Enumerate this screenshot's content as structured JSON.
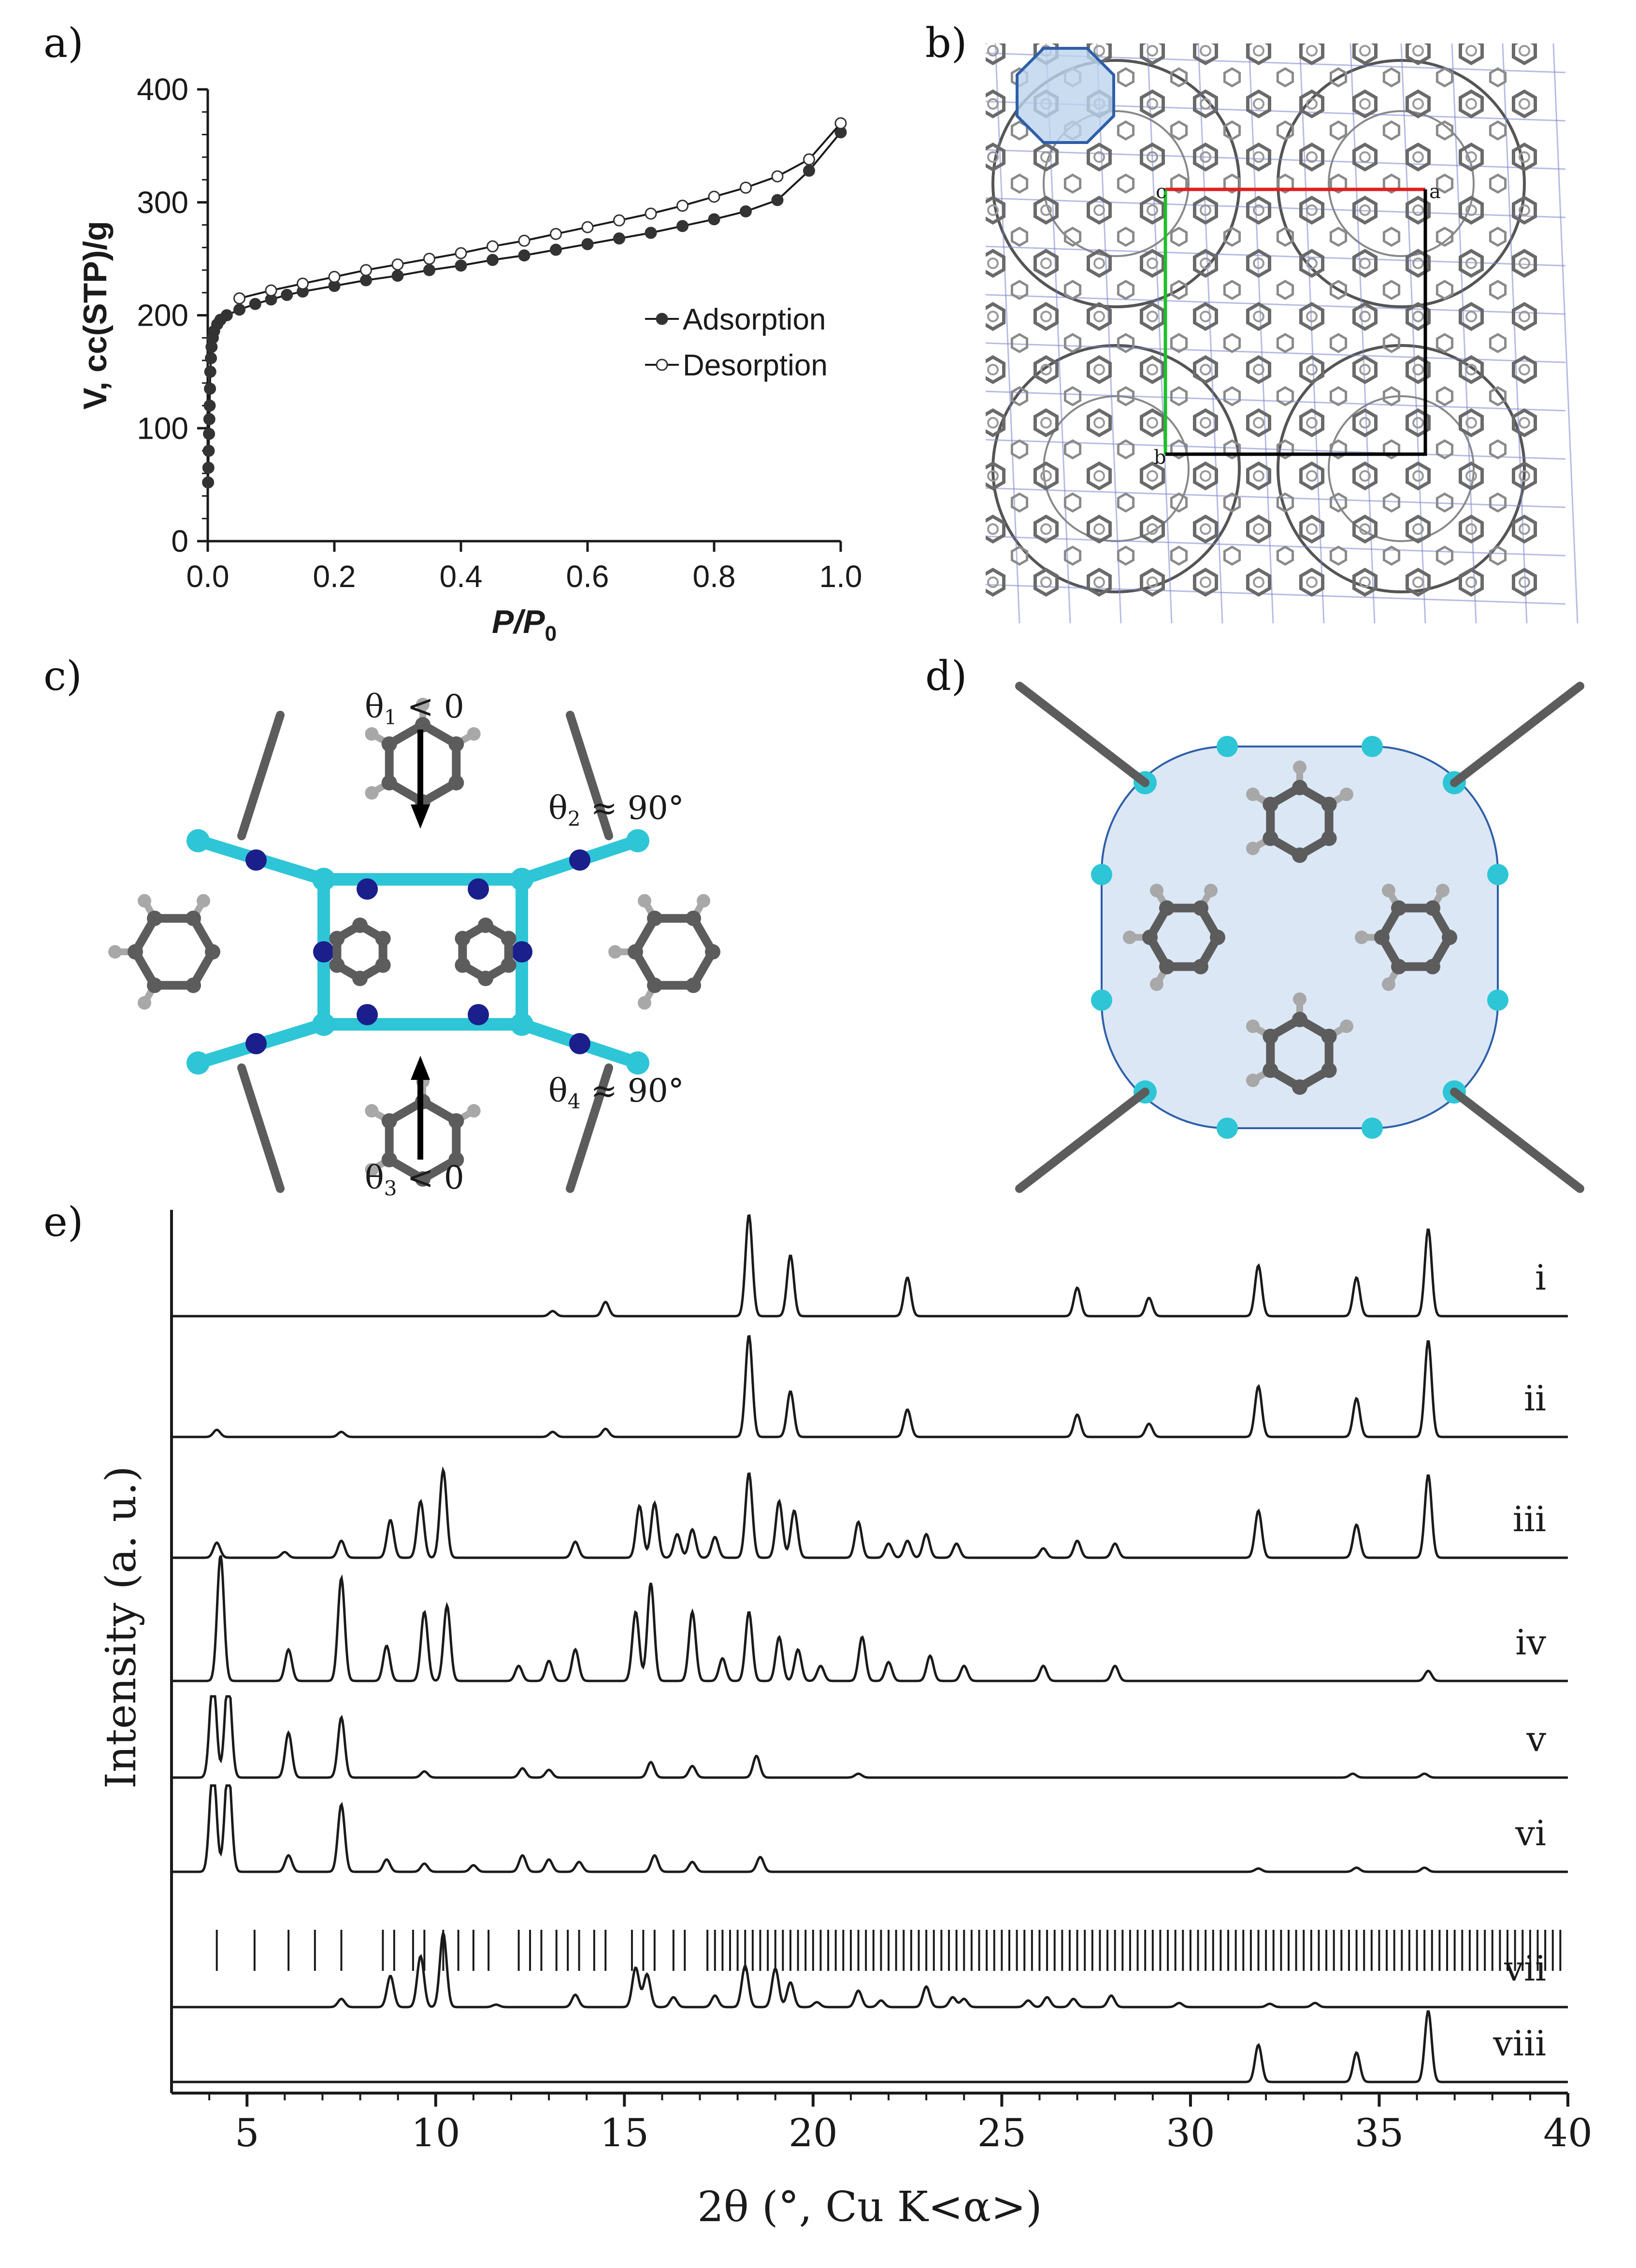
{
  "panels": {
    "a": "a)",
    "b": "b)",
    "c": "c)",
    "d": "d)",
    "e": "e)"
  },
  "colors": {
    "ink": "#1a1a1a",
    "pore_fill": "#bcd3ec",
    "pore_edge": "#2e5fa8",
    "zn": "#2ec6d6",
    "n": "#1a1f8c",
    "c": "#5c5c5c",
    "h": "#a8a8a8",
    "axis_a": "#e01f1f",
    "axis_b": "#1fbf2a",
    "cell": "#000000",
    "framework_line": "#7b84cc"
  },
  "chart_data": [
    {
      "type": "line",
      "panel": "a)",
      "xlabel": "P/P",
      "xlabel_sub": "0",
      "ylabel": "V, cc(STP)/g",
      "xlim": [
        0.0,
        1.0
      ],
      "ylim": [
        0,
        400
      ],
      "xticks": [
        "0.0",
        "0.2",
        "0.4",
        "0.6",
        "0.8",
        "1.0"
      ],
      "yticks": [
        "0",
        "100",
        "200",
        "300",
        "400"
      ],
      "legend_position": "right",
      "series": [
        {
          "name": "Adsorption",
          "marker": "filled",
          "x": [
            0.0005,
            0.001,
            0.0015,
            0.002,
            0.0025,
            0.003,
            0.0035,
            0.004,
            0.005,
            0.006,
            0.008,
            0.01,
            0.015,
            0.02,
            0.03,
            0.05,
            0.075,
            0.1,
            0.125,
            0.15,
            0.2,
            0.25,
            0.3,
            0.35,
            0.4,
            0.45,
            0.5,
            0.55,
            0.6,
            0.65,
            0.7,
            0.75,
            0.8,
            0.85,
            0.9,
            0.95,
            1.0
          ],
          "y": [
            52,
            65,
            80,
            95,
            108,
            120,
            135,
            150,
            162,
            172,
            180,
            186,
            192,
            196,
            200,
            205,
            210,
            214,
            218,
            221,
            226,
            231,
            235,
            240,
            244,
            249,
            253,
            258,
            263,
            268,
            273,
            279,
            285,
            292,
            302,
            328,
            362
          ]
        },
        {
          "name": "Desorption",
          "marker": "open",
          "x": [
            0.05,
            0.1,
            0.15,
            0.2,
            0.25,
            0.3,
            0.35,
            0.4,
            0.45,
            0.5,
            0.55,
            0.6,
            0.65,
            0.7,
            0.75,
            0.8,
            0.85,
            0.9,
            0.95,
            1.0
          ],
          "y": [
            215,
            222,
            228,
            234,
            240,
            245,
            250,
            255,
            261,
            266,
            272,
            278,
            284,
            290,
            297,
            305,
            313,
            323,
            338,
            370
          ]
        }
      ]
    },
    {
      "type": "line",
      "panel": "e)",
      "xlabel": "2θ (°, Cu K<α>)",
      "ylabel": "Intensity (a. u.)",
      "xlim": [
        3,
        40
      ],
      "xticks": [
        "5",
        "10",
        "15",
        "20",
        "25",
        "30",
        "35",
        "40"
      ],
      "stacked": true,
      "series": [
        {
          "name": "i",
          "peaks": [
            [
              13.1,
              0.05
            ],
            [
              14.5,
              0.14
            ],
            [
              18.3,
              1.0
            ],
            [
              19.4,
              0.6
            ],
            [
              22.5,
              0.38
            ],
            [
              27.0,
              0.28
            ],
            [
              28.9,
              0.18
            ],
            [
              31.8,
              0.5
            ],
            [
              34.4,
              0.38
            ],
            [
              36.3,
              0.86
            ]
          ]
        },
        {
          "name": "ii",
          "peaks": [
            [
              4.2,
              0.07
            ],
            [
              7.5,
              0.05
            ],
            [
              13.1,
              0.05
            ],
            [
              14.5,
              0.08
            ],
            [
              18.3,
              1.0
            ],
            [
              19.4,
              0.45
            ],
            [
              22.5,
              0.27
            ],
            [
              27.0,
              0.22
            ],
            [
              28.9,
              0.13
            ],
            [
              31.8,
              0.5
            ],
            [
              34.4,
              0.38
            ],
            [
              36.3,
              0.95
            ]
          ]
        },
        {
          "name": "iii",
          "peaks": [
            [
              4.2,
              0.16
            ],
            [
              6.0,
              0.06
            ],
            [
              7.5,
              0.18
            ],
            [
              8.8,
              0.4
            ],
            [
              9.6,
              0.6
            ],
            [
              10.2,
              0.93
            ],
            [
              13.7,
              0.17
            ],
            [
              15.4,
              0.55
            ],
            [
              15.8,
              0.58
            ],
            [
              16.4,
              0.25
            ],
            [
              16.8,
              0.3
            ],
            [
              17.4,
              0.22
            ],
            [
              18.3,
              0.9
            ],
            [
              19.1,
              0.6
            ],
            [
              19.5,
              0.5
            ],
            [
              21.2,
              0.38
            ],
            [
              22.0,
              0.15
            ],
            [
              22.5,
              0.18
            ],
            [
              23.0,
              0.25
            ],
            [
              23.8,
              0.15
            ],
            [
              26.1,
              0.1
            ],
            [
              27.0,
              0.18
            ],
            [
              28.0,
              0.15
            ],
            [
              31.8,
              0.5
            ],
            [
              34.4,
              0.35
            ],
            [
              36.3,
              0.88
            ]
          ]
        },
        {
          "name": "iv",
          "peaks": [
            [
              4.3,
              1.0
            ],
            [
              6.1,
              0.25
            ],
            [
              7.5,
              0.82
            ],
            [
              8.7,
              0.28
            ],
            [
              9.7,
              0.55
            ],
            [
              10.3,
              0.6
            ],
            [
              12.2,
              0.12
            ],
            [
              13.0,
              0.16
            ],
            [
              13.7,
              0.25
            ],
            [
              15.3,
              0.55
            ],
            [
              15.7,
              0.78
            ],
            [
              16.8,
              0.55
            ],
            [
              17.6,
              0.18
            ],
            [
              18.3,
              0.55
            ],
            [
              19.1,
              0.35
            ],
            [
              19.6,
              0.25
            ],
            [
              20.2,
              0.12
            ],
            [
              21.3,
              0.35
            ],
            [
              22.0,
              0.15
            ],
            [
              23.1,
              0.2
            ],
            [
              24.0,
              0.12
            ],
            [
              26.1,
              0.12
            ],
            [
              28.0,
              0.12
            ],
            [
              36.3,
              0.08
            ]
          ]
        },
        {
          "name": "v",
          "peaks": [
            [
              4.1,
              1.3
            ],
            [
              4.5,
              1.3
            ],
            [
              6.1,
              0.58
            ],
            [
              7.5,
              0.78
            ],
            [
              9.7,
              0.08
            ],
            [
              12.3,
              0.12
            ],
            [
              13.0,
              0.1
            ],
            [
              15.7,
              0.2
            ],
            [
              16.8,
              0.15
            ],
            [
              18.5,
              0.28
            ],
            [
              21.2,
              0.05
            ],
            [
              34.3,
              0.05
            ],
            [
              36.2,
              0.05
            ]
          ],
          "break": true
        },
        {
          "name": "vi",
          "peaks": [
            [
              4.1,
              1.3
            ],
            [
              4.5,
              1.3
            ],
            [
              6.1,
              0.2
            ],
            [
              7.5,
              0.82
            ],
            [
              8.7,
              0.15
            ],
            [
              9.7,
              0.1
            ],
            [
              11.0,
              0.08
            ],
            [
              12.3,
              0.2
            ],
            [
              13.0,
              0.15
            ],
            [
              13.8,
              0.12
            ],
            [
              15.8,
              0.2
            ],
            [
              16.8,
              0.12
            ],
            [
              18.6,
              0.18
            ],
            [
              31.8,
              0.04
            ],
            [
              34.4,
              0.05
            ],
            [
              36.2,
              0.05
            ]
          ],
          "break": true
        },
        {
          "name": "vii",
          "peaks": [
            [
              7.5,
              0.1
            ],
            [
              8.8,
              0.38
            ],
            [
              9.6,
              0.62
            ],
            [
              10.2,
              0.9
            ],
            [
              11.6,
              0.03
            ],
            [
              13.7,
              0.15
            ],
            [
              15.3,
              0.48
            ],
            [
              15.6,
              0.4
            ],
            [
              16.3,
              0.12
            ],
            [
              17.4,
              0.14
            ],
            [
              18.2,
              0.5
            ],
            [
              19.0,
              0.47
            ],
            [
              19.4,
              0.3
            ],
            [
              20.1,
              0.06
            ],
            [
              21.2,
              0.2
            ],
            [
              21.8,
              0.08
            ],
            [
              23.0,
              0.25
            ],
            [
              23.7,
              0.12
            ],
            [
              24.0,
              0.1
            ],
            [
              25.7,
              0.08
            ],
            [
              26.2,
              0.12
            ],
            [
              26.9,
              0.1
            ],
            [
              27.9,
              0.14
            ],
            [
              29.7,
              0.05
            ],
            [
              32.1,
              0.04
            ],
            [
              33.3,
              0.05
            ]
          ]
        },
        {
          "name": "viii",
          "peaks": [
            [
              31.8,
              0.48
            ],
            [
              34.4,
              0.38
            ],
            [
              36.3,
              0.92
            ]
          ]
        }
      ]
    }
  ],
  "panel_c": {
    "theta1": "θ",
    "theta1_sub": "1",
    "theta1_rel": " < 0",
    "theta2": "θ",
    "theta2_sub": "2",
    "theta2_rel": " ≈ 90°",
    "theta3": "θ",
    "theta3_sub": "3",
    "theta3_rel": " < 0",
    "theta4": "θ",
    "theta4_sub": "4",
    "theta4_rel": " ≈ 90°"
  },
  "panel_b": {
    "axis_labels": [
      "c",
      "a",
      "b"
    ]
  }
}
